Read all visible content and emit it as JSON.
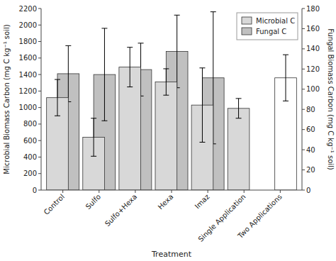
{
  "chart_data": {
    "type": "bar",
    "xlabel": "Treatment",
    "ylabel": "Microbial Biomass Carbon (mg C kg⁻¹ soil)",
    "y2label": "Fungal Biomass Carbon (mg C kg⁻¹ soil)",
    "categories": [
      "Control",
      "Sulfo",
      "Sulfo+Hexa",
      "Hexa",
      "Imaz",
      "Single Application",
      "Two Applications"
    ],
    "series": [
      {
        "name": "Microbial C",
        "color": "#d8d8d8",
        "values": [
          1120,
          640,
          1490,
          1310,
          1030,
          990,
          null
        ],
        "errors": [
          220,
          230,
          240,
          160,
          450,
          120,
          null
        ]
      },
      {
        "name": "Fungal C",
        "color": "#c0c0c0",
        "colors": [
          "#c0c0c0",
          "#c0c0c0",
          "#c0c0c0",
          "#c0c0c0",
          "#c0c0c0",
          "#c0c0c0",
          "#ffffff"
        ],
        "values": [
          1410,
          1400,
          1460,
          1680,
          1360,
          null,
          1360
        ],
        "errors": [
          340,
          560,
          320,
          440,
          800,
          null,
          280
        ]
      }
    ],
    "ylim": [
      0,
      2200
    ],
    "yticks": [
      0,
      200,
      400,
      600,
      800,
      1000,
      1200,
      1400,
      1600,
      1800,
      2000,
      2200
    ],
    "y2lim": [
      0,
      180
    ],
    "y2ticks": [
      0,
      20,
      40,
      60,
      80,
      100,
      120,
      140,
      160,
      180
    ],
    "grid": false,
    "legend": "upper right"
  }
}
